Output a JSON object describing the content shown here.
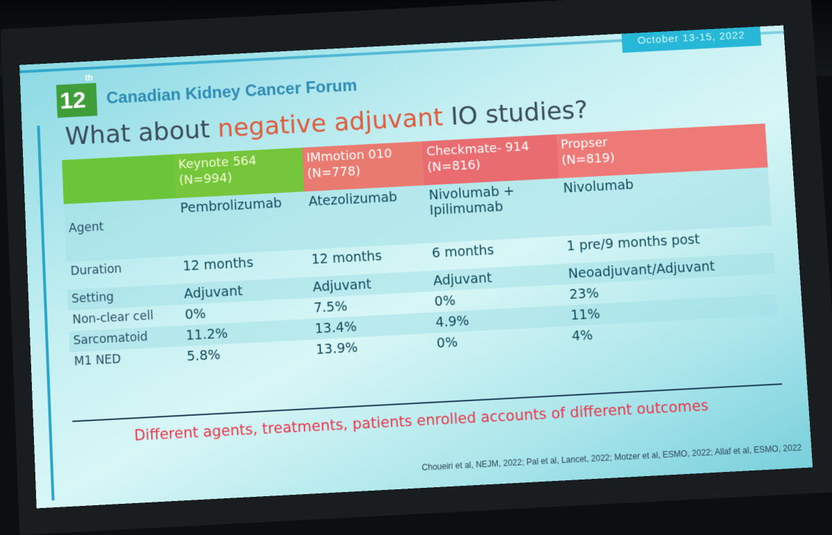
{
  "slide": {
    "date_badge": "October 13-15, 2022",
    "forum_number": "12",
    "forum_ordinal_suffix": "th",
    "forum_name": "Canadian Kidney Cancer Forum",
    "title_prefix": "What about ",
    "title_highlight": "negative adjuvant",
    "title_suffix": " IO studies?",
    "colors": {
      "accent_green": "#6bc439",
      "accent_red": "#ee7a78",
      "title_highlight": "#e05a3c",
      "conclusion_text": "#e8374a"
    }
  },
  "table": {
    "columns": [
      {
        "name": "Keynote 564",
        "n": "(N=994)"
      },
      {
        "name": "IMmotion 010",
        "n": "(N=778)"
      },
      {
        "name": "Checkmate- 914",
        "n": "(N=816)"
      },
      {
        "name": "Propser",
        "n": "(N=819)"
      }
    ],
    "rows": [
      {
        "label": "Agent",
        "values": [
          "Pembrolizumab",
          "Atezolizumab",
          "Nivolumab + Ipilimumab",
          "Nivolumab"
        ]
      },
      {
        "label": "Duration",
        "values": [
          "12 months",
          "12 months",
          "6 months",
          "1 pre/9 months post"
        ]
      },
      {
        "label": "Setting",
        "values": [
          "Adjuvant",
          "Adjuvant",
          "Adjuvant",
          "Neoadjuvant/Adjuvant"
        ]
      },
      {
        "label": "Non-clear cell",
        "values": [
          "0%",
          "7.5%",
          "0%",
          "23%"
        ]
      },
      {
        "label": "Sarcomatoid",
        "values": [
          "11.2%",
          "13.4%",
          "4.9%",
          "11%"
        ]
      },
      {
        "label": "M1 NED",
        "values": [
          "5.8%",
          "13.9%",
          "0%",
          "4%"
        ]
      }
    ]
  },
  "conclusion": "Different agents, treatments, patients enrolled accounts of different outcomes",
  "references": "Choueiri et al, NEJM, 2022; Pal et al, Lancet, 2022; Motzer et al, ESMO, 2022; Allaf et al, ESMO, 2022"
}
